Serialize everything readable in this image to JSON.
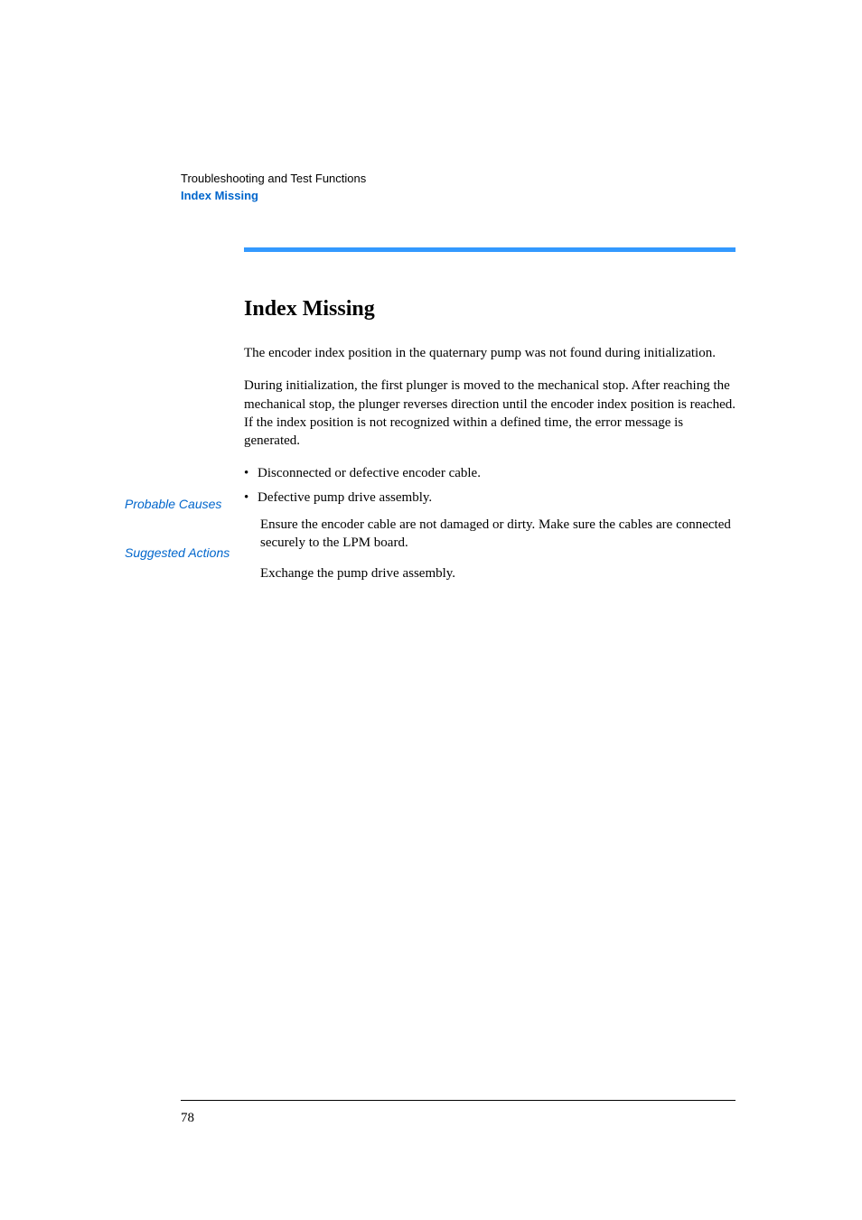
{
  "header": {
    "chapter": "Troubleshooting and Test Functions",
    "title": "Index Missing"
  },
  "section": {
    "title": "Index Missing"
  },
  "paragraphs": {
    "p1": "The encoder index position in the quaternary pump was not found during initialization.",
    "p2": "During initialization, the first plunger is moved to the mechanical stop. After reaching the mechanical stop, the plunger reverses direction until the encoder index position is reached. If the index position is not recognized within a defined time, the error message is generated."
  },
  "sideLabels": {
    "causes": "Probable Causes",
    "actions": "Suggested Actions"
  },
  "causes": {
    "item1": "Disconnected or defective encoder cable.",
    "item2": "Defective pump drive assembly."
  },
  "actions": {
    "item1": "Ensure the encoder cable are not damaged or dirty. Make sure the cables are connected securely to the LPM board.",
    "item2": "Exchange the pump drive assembly."
  },
  "footer": {
    "pageNumber": "78"
  },
  "colors": {
    "divider": "#3399ff",
    "link": "#0066cc",
    "text": "#000000",
    "background": "#ffffff"
  }
}
